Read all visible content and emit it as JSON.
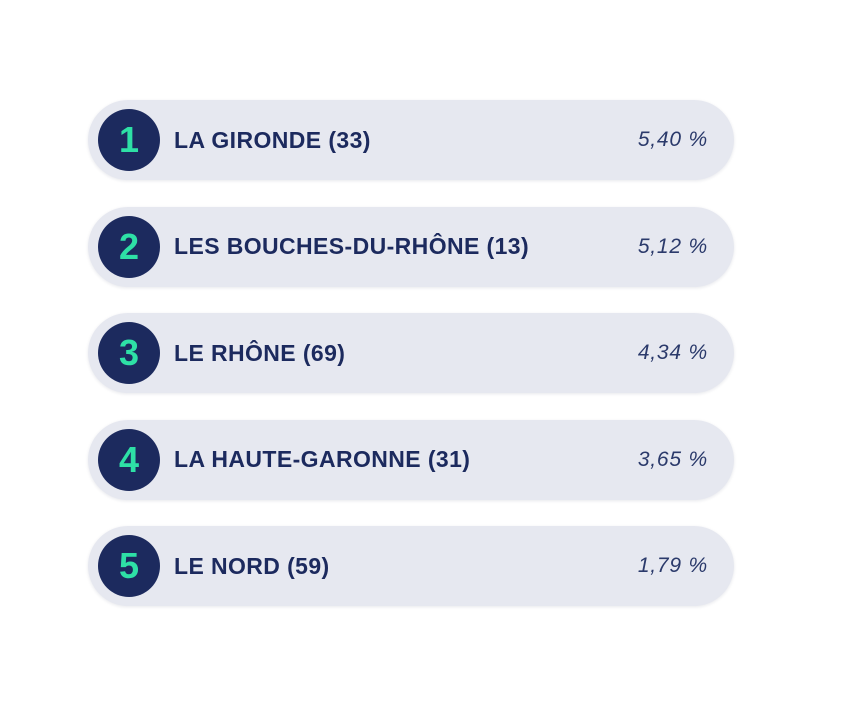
{
  "ranking": {
    "items": [
      {
        "rank": "1",
        "name": "LA GIRONDE (33)",
        "value": "5,40 %"
      },
      {
        "rank": "2",
        "name": "LES BOUCHES-DU-RHÔNE (13)",
        "value": "5,12 %"
      },
      {
        "rank": "3",
        "name": "LE RHÔNE (69)",
        "value": "4,34 %"
      },
      {
        "rank": "4",
        "name": "LA HAUTE-GARONNE (31)",
        "value": "3,65 %"
      },
      {
        "rank": "5",
        "name": "LE NORD (59)",
        "value": "1,79 %"
      }
    ]
  },
  "colors": {
    "badge_background": "#1c2a5e",
    "badge_number": "#2ee0a6",
    "row_background": "#e6e8f0",
    "text": "#1c2a5e"
  }
}
